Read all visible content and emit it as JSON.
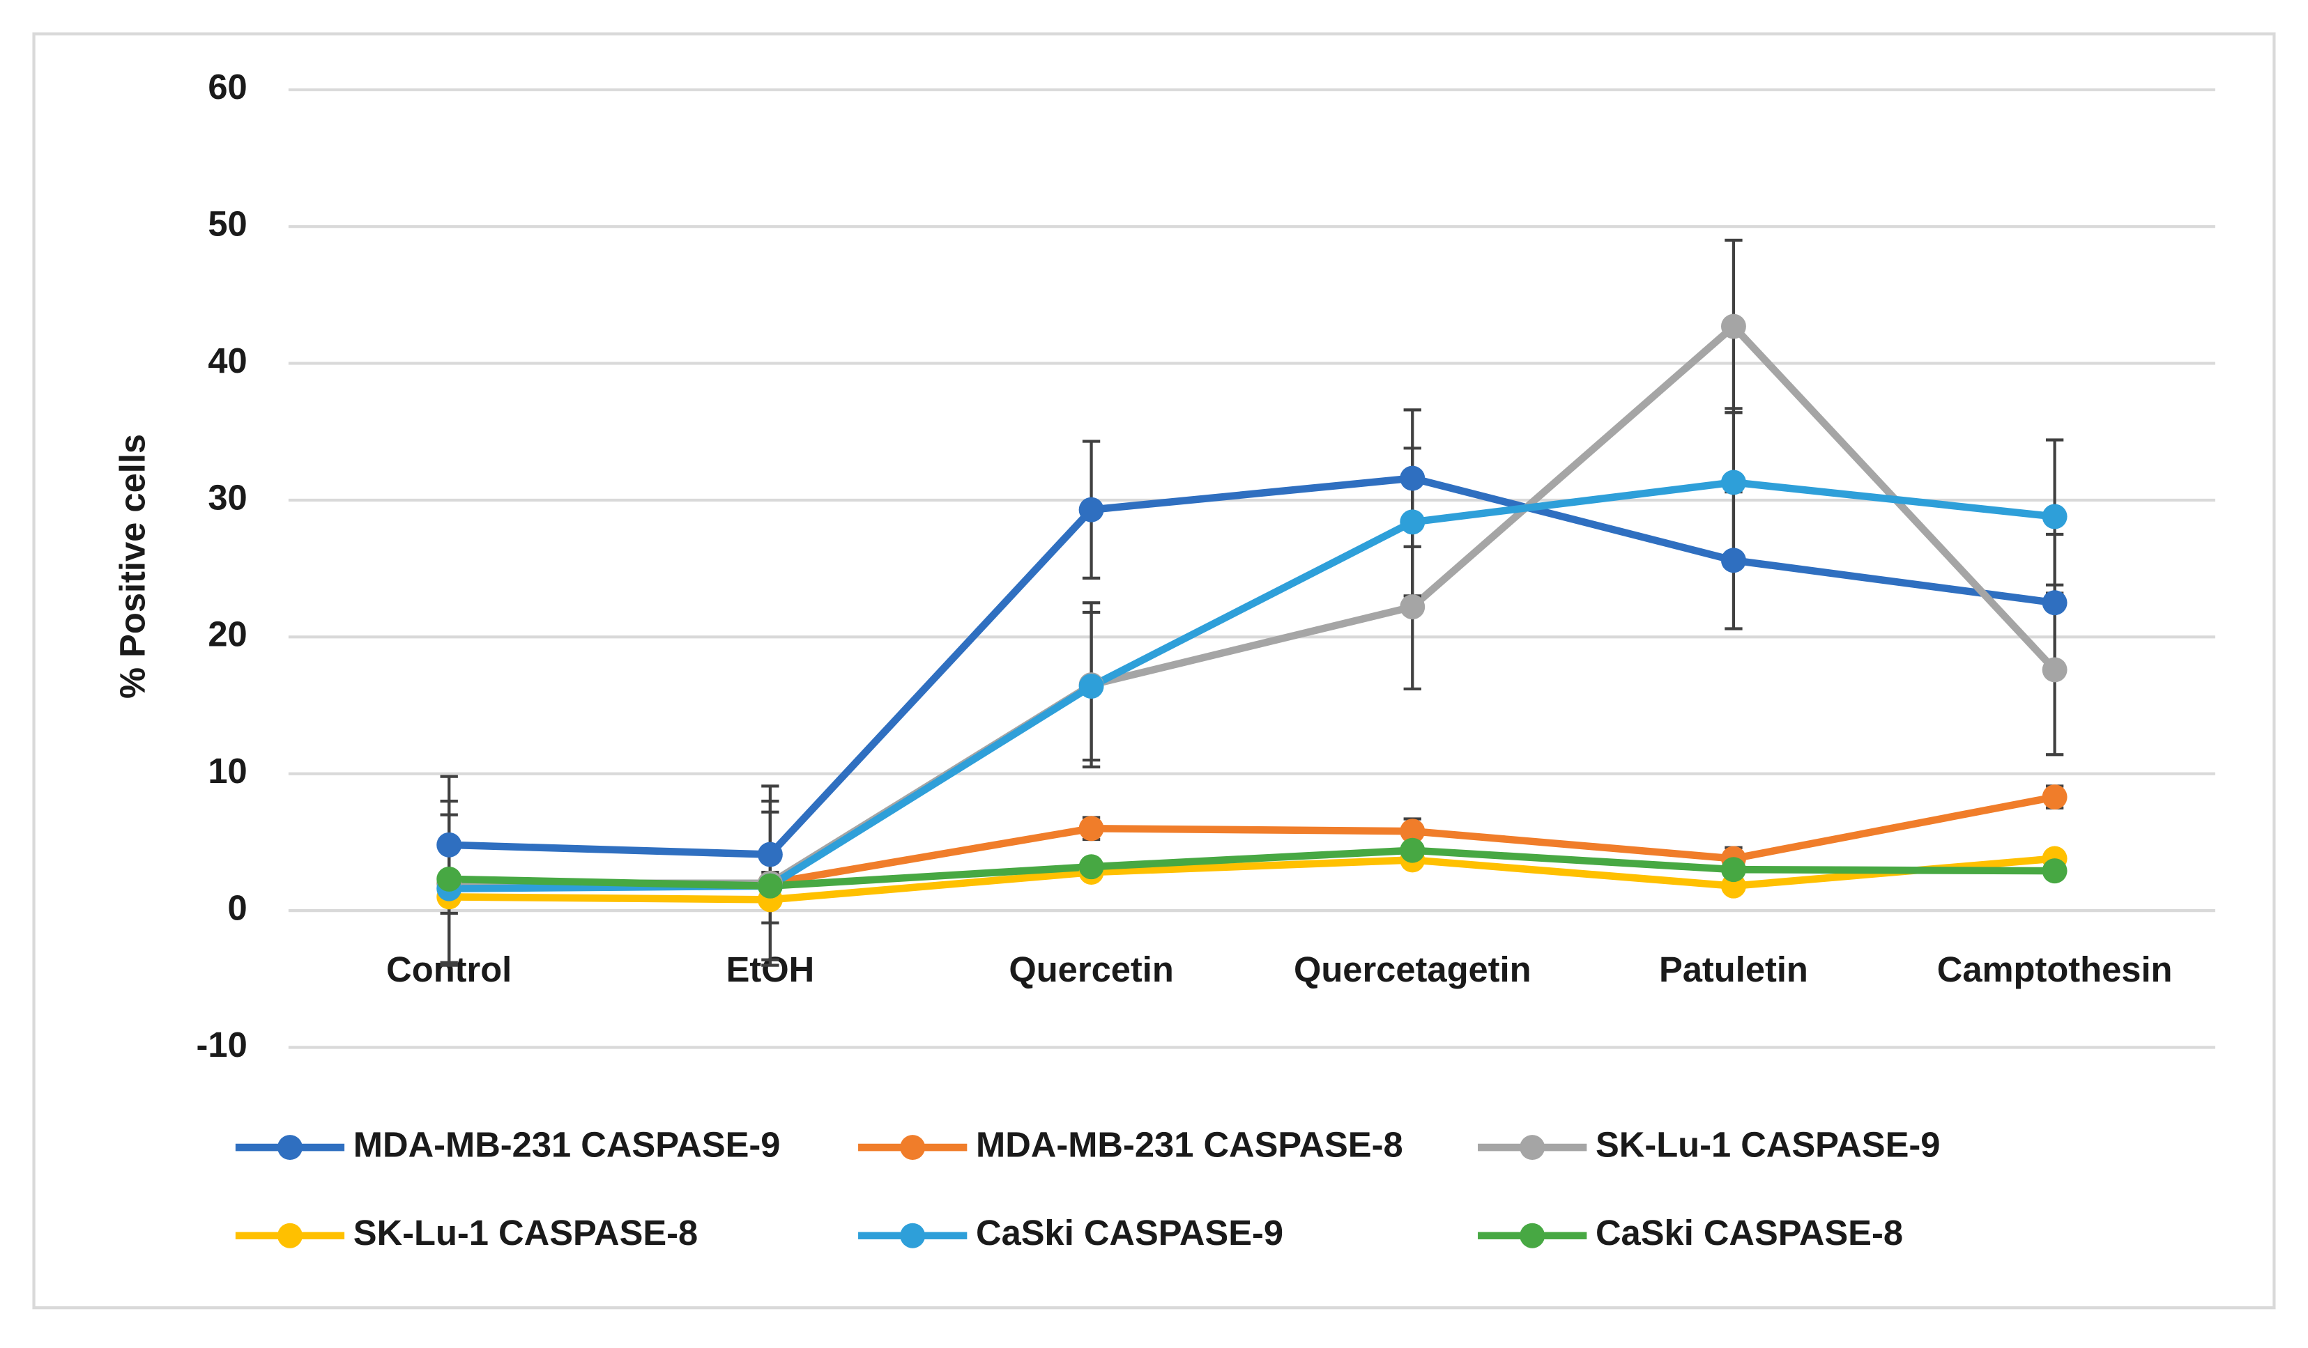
{
  "chart_data": {
    "type": "line",
    "ylabel": "% Positive cells",
    "categories": [
      "Control",
      "EtOH",
      "Quercetin",
      "Quercetagetin",
      "Patuletin",
      "Camptothesin"
    ],
    "ylim": [
      -10,
      60
    ],
    "yticks": [
      -10,
      0,
      10,
      20,
      30,
      40,
      50,
      60
    ],
    "grid": true,
    "legend": "bottom",
    "series": [
      {
        "name": "MDA-MB-231 CASPASE-9",
        "color": "#2f6fc0",
        "values": [
          4.8,
          4.1,
          29.3,
          31.6,
          25.6,
          22.5
        ],
        "errors": [
          5,
          5,
          5,
          5,
          5,
          5
        ]
      },
      {
        "name": "MDA-MB-231 CASPASE-8",
        "color": "#f07d2a",
        "values": [
          2.0,
          2.0,
          6.0,
          5.8,
          3.8,
          8.3
        ],
        "errors": [
          0.8,
          0.8,
          0.8,
          0.9,
          0.8,
          0.8
        ]
      },
      {
        "name": "SK-Lu-1 CASPASE-9",
        "color": "#a5a5a5",
        "values": [
          2.0,
          2.0,
          16.5,
          22.2,
          42.7,
          17.6
        ],
        "errors": [
          6,
          6,
          6,
          6,
          6.3,
          6.2
        ]
      },
      {
        "name": "SK-Lu-1 CASPASE-8",
        "color": "#ffc000",
        "values": [
          1.0,
          0.8,
          2.8,
          3.7,
          1.8,
          3.8
        ],
        "errors": [
          0.5,
          0.5,
          0.5,
          0.5,
          0.5,
          0.5
        ]
      },
      {
        "name": "CaSki CASPASE-9",
        "color": "#2e9fd9",
        "values": [
          1.6,
          1.8,
          16.4,
          28.4,
          31.3,
          28.8
        ],
        "errors": [
          5.4,
          5.4,
          5.4,
          5.4,
          5.4,
          5.6
        ]
      },
      {
        "name": "CaSki CASPASE-8",
        "color": "#47a843",
        "values": [
          2.3,
          1.8,
          3.2,
          4.4,
          3.0,
          2.9
        ],
        "errors": [
          0.5,
          0.5,
          0.5,
          0.5,
          0.5,
          0.5
        ]
      }
    ]
  }
}
